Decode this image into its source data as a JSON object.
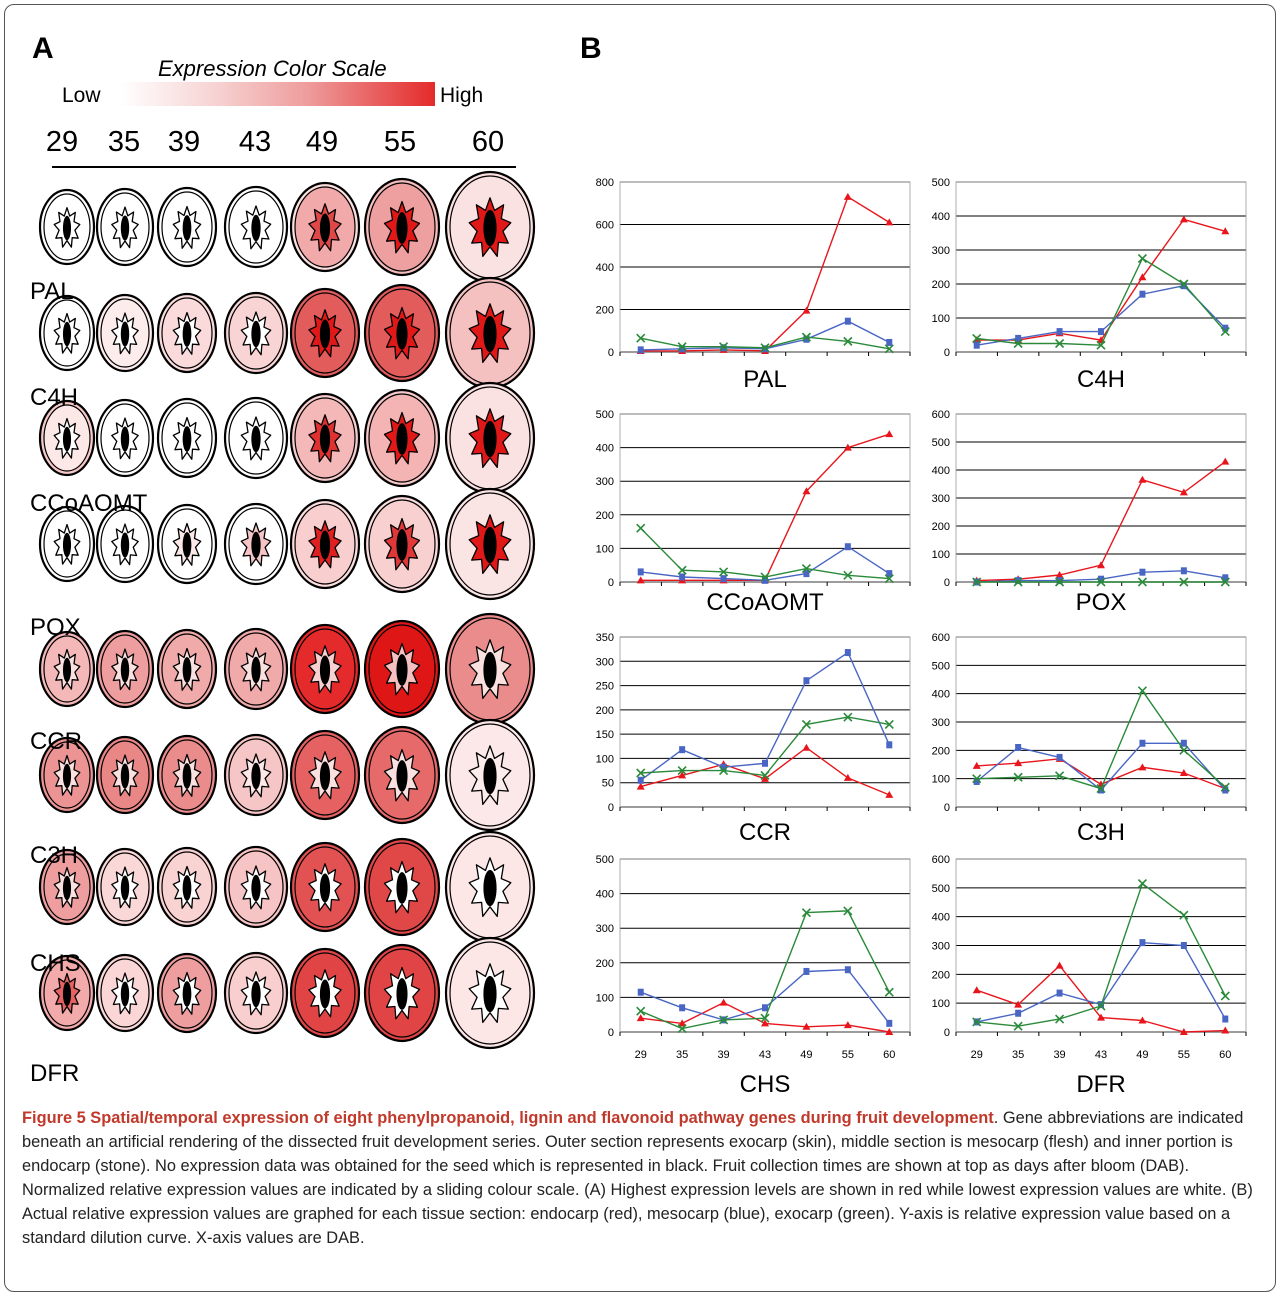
{
  "panel_a": {
    "letter": "A",
    "scale": {
      "title": "Expression Color Scale",
      "low": "Low",
      "high": "High"
    },
    "days": [
      "29",
      "35",
      "39",
      "43",
      "49",
      "55",
      "60"
    ],
    "genes": [
      {
        "name": "PAL",
        "skin": [
          "#ffffff",
          "#ffffff",
          "#ffffff",
          "#ffffff",
          "#fbdede",
          "#f5bcbc",
          "#fae0e0"
        ],
        "flesh": [
          "#ffffff",
          "#ffffff",
          "#ffffff",
          "#ffffff",
          "#f2a9a9",
          "#eea0a0",
          "#fbe2e2"
        ],
        "core": [
          "#ffffff",
          "#ffffff",
          "#ffffff",
          "#ffffff",
          "#e04848",
          "#e01818",
          "#e01818"
        ]
      },
      {
        "name": "C4H",
        "skin": [
          "#ffffff",
          "#fcecec",
          "#fadcdc",
          "#f9d6d6",
          "#e25c5c",
          "#e25c5c",
          "#f5c2c2"
        ],
        "flesh": [
          "#ffffff",
          "#fcecec",
          "#fadada",
          "#f9d4d4",
          "#e25c5c",
          "#e25c5c",
          "#f4c0c0"
        ],
        "core": [
          "#ffffff",
          "#ffffff",
          "#ffffff",
          "#ffffff",
          "#e01818",
          "#e01818",
          "#e01818"
        ]
      },
      {
        "name": "CCoAOMT",
        "skin": [
          "#f6c8c8",
          "#ffffff",
          "#ffffff",
          "#ffffff",
          "#f8cccc",
          "#f7c8c8",
          "#fbe2e2"
        ],
        "flesh": [
          "#fde8e8",
          "#ffffff",
          "#ffffff",
          "#ffffff",
          "#f4b8b8",
          "#f4b4b4",
          "#fbe2e2"
        ],
        "core": [
          "#ffffff",
          "#ffffff",
          "#ffffff",
          "#ffffff",
          "#e03030",
          "#e01818",
          "#e01818"
        ]
      },
      {
        "name": "POX",
        "skin": [
          "#ffffff",
          "#ffffff",
          "#ffffff",
          "#ffffff",
          "#fbdede",
          "#fbdcdc",
          "#fbe4e4"
        ],
        "flesh": [
          "#ffffff",
          "#ffffff",
          "#ffffff",
          "#ffffff",
          "#f8cece",
          "#f8d0d0",
          "#fbe4e4"
        ],
        "core": [
          "#ffffff",
          "#ffffff",
          "#fde8e8",
          "#f6c4c4",
          "#e02020",
          "#e03838",
          "#e01818"
        ]
      },
      {
        "name": "CCR",
        "skin": [
          "#f4b8b8",
          "#ee9e9e",
          "#f1aaaa",
          "#f1aaaa",
          "#e42a2a",
          "#de1616",
          "#eb8c8c"
        ],
        "flesh": [
          "#f4b8b8",
          "#ee9e9e",
          "#f1aaaa",
          "#f1aaaa",
          "#e42a2a",
          "#de1616",
          "#eb8c8c"
        ],
        "core": [
          "#fbe0e0",
          "#fbe0e0",
          "#fbe0e0",
          "#fbe0e0",
          "#f9d0d0",
          "#f7c0c0",
          "#fbe0e0"
        ]
      },
      {
        "name": "C3H",
        "skin": [
          "#ec9494",
          "#e98686",
          "#eb8c8c",
          "#f6c6c6",
          "#e66262",
          "#e66a6a",
          "#fce8e8"
        ],
        "flesh": [
          "#ec9494",
          "#e98686",
          "#eb8c8c",
          "#f6c6c6",
          "#e66262",
          "#e66a6a",
          "#fce8e8"
        ],
        "core": [
          "#fbe0e0",
          "#fbe0e0",
          "#fbe0e0",
          "#fde8e8",
          "#fbe0e0",
          "#fbe0e0",
          "#fdecec"
        ]
      },
      {
        "name": "CHS",
        "skin": [
          "#ee9e9e",
          "#fad8d8",
          "#f9d2d2",
          "#f6c4c4",
          "#e25252",
          "#e04848",
          "#fce6e6"
        ],
        "flesh": [
          "#ee9e9e",
          "#fad8d8",
          "#f9d2d2",
          "#f6c4c4",
          "#e25252",
          "#e04848",
          "#fce6e6"
        ],
        "core": [
          "#fbe0e0",
          "#ffffff",
          "#ffffff",
          "#ffffff",
          "#ffffff",
          "#ffffff",
          "#ffffff"
        ]
      },
      {
        "name": "DFR",
        "skin": [
          "#f2aaaa",
          "#fad6d6",
          "#ee9e9e",
          "#f8cece",
          "#e04444",
          "#e04444",
          "#fce6e6"
        ],
        "flesh": [
          "#f2aaaa",
          "#fad6d6",
          "#ee9e9e",
          "#f8cece",
          "#e04444",
          "#e04444",
          "#fce6e6"
        ],
        "core": [
          "#e66262",
          "#ffffff",
          "#ffffff",
          "#ffffff",
          "#ffffff",
          "#ffffff",
          "#ffffff"
        ]
      }
    ]
  },
  "panel_b": {
    "letter": "B"
  },
  "colors": {
    "endocarp": "#e8161c",
    "mesocarp": "#4a66c4",
    "exocarp": "#2a8a3a"
  },
  "chart_data": [
    {
      "type": "line",
      "title": "PAL",
      "categories": [
        "29",
        "35",
        "39",
        "43",
        "49",
        "55",
        "60"
      ],
      "yticks": [
        0,
        200,
        400,
        600,
        800
      ],
      "ylim": [
        0,
        800
      ],
      "series": [
        {
          "values": [
            5,
            5,
            10,
            5,
            195,
            730,
            610
          ]
        },
        {
          "values": [
            10,
            15,
            20,
            15,
            60,
            145,
            45
          ]
        },
        {
          "values": [
            65,
            25,
            25,
            20,
            70,
            50,
            15
          ]
        }
      ]
    },
    {
      "type": "line",
      "title": "C4H",
      "categories": [
        "29",
        "35",
        "39",
        "43",
        "49",
        "55",
        "60"
      ],
      "yticks": [
        0,
        100,
        200,
        300,
        400,
        500
      ],
      "ylim": [
        0,
        500
      ],
      "series": [
        {
          "values": [
            35,
            35,
            55,
            35,
            220,
            390,
            355
          ]
        },
        {
          "values": [
            20,
            40,
            60,
            60,
            170,
            195,
            70
          ]
        },
        {
          "values": [
            40,
            25,
            25,
            20,
            275,
            200,
            60
          ]
        }
      ]
    },
    {
      "type": "line",
      "title": "CCoAOMT",
      "categories": [
        "29",
        "35",
        "39",
        "43",
        "49",
        "55",
        "60"
      ],
      "yticks": [
        0,
        100,
        200,
        300,
        400,
        500
      ],
      "ylim": [
        0,
        500
      ],
      "series": [
        {
          "values": [
            5,
            5,
            5,
            5,
            270,
            400,
            440
          ]
        },
        {
          "values": [
            30,
            15,
            10,
            5,
            25,
            105,
            25
          ]
        },
        {
          "values": [
            160,
            35,
            30,
            15,
            40,
            20,
            10
          ]
        }
      ]
    },
    {
      "type": "line",
      "title": "POX",
      "categories": [
        "29",
        "35",
        "39",
        "43",
        "49",
        "55",
        "60"
      ],
      "yticks": [
        0,
        100,
        200,
        300,
        400,
        500,
        600
      ],
      "ylim": [
        0,
        600
      ],
      "series": [
        {
          "values": [
            5,
            10,
            25,
            60,
            365,
            320,
            430
          ]
        },
        {
          "values": [
            0,
            5,
            5,
            10,
            35,
            40,
            15
          ]
        },
        {
          "values": [
            0,
            0,
            0,
            0,
            0,
            0,
            0
          ]
        }
      ]
    },
    {
      "type": "line",
      "title": "CCR",
      "categories": [
        "29",
        "35",
        "39",
        "43",
        "49",
        "55",
        "60"
      ],
      "yticks": [
        0,
        50,
        100,
        150,
        200,
        250,
        300,
        350
      ],
      "ylim": [
        0,
        350
      ],
      "series": [
        {
          "values": [
            42,
            65,
            88,
            58,
            122,
            60,
            25
          ]
        },
        {
          "values": [
            55,
            118,
            82,
            90,
            260,
            318,
            128
          ]
        },
        {
          "values": [
            70,
            75,
            75,
            65,
            170,
            185,
            170
          ]
        }
      ]
    },
    {
      "type": "line",
      "title": "C3H",
      "categories": [
        "29",
        "35",
        "39",
        "43",
        "49",
        "55",
        "60"
      ],
      "yticks": [
        0,
        100,
        200,
        300,
        400,
        500,
        600
      ],
      "ylim": [
        0,
        600
      ],
      "series": [
        {
          "values": [
            145,
            155,
            170,
            80,
            140,
            120,
            65
          ]
        },
        {
          "values": [
            90,
            210,
            175,
            60,
            225,
            225,
            60
          ]
        },
        {
          "values": [
            100,
            105,
            110,
            65,
            410,
            200,
            70
          ]
        }
      ]
    },
    {
      "type": "line",
      "title": "CHS",
      "categories": [
        "29",
        "35",
        "39",
        "43",
        "49",
        "55",
        "60"
      ],
      "yticks": [
        0,
        100,
        200,
        300,
        400,
        500
      ],
      "ylim": [
        0,
        500
      ],
      "series": [
        {
          "values": [
            40,
            25,
            85,
            25,
            15,
            20,
            0
          ]
        },
        {
          "values": [
            115,
            70,
            35,
            70,
            175,
            180,
            25
          ]
        },
        {
          "values": [
            60,
            10,
            35,
            40,
            345,
            350,
            115
          ]
        }
      ]
    },
    {
      "type": "line",
      "title": "DFR",
      "categories": [
        "29",
        "35",
        "39",
        "43",
        "49",
        "55",
        "60"
      ],
      "yticks": [
        0,
        100,
        200,
        300,
        400,
        500,
        600
      ],
      "ylim": [
        0,
        600
      ],
      "series": [
        {
          "values": [
            145,
            95,
            230,
            50,
            40,
            0,
            5
          ]
        },
        {
          "values": [
            35,
            65,
            135,
            95,
            310,
            300,
            45
          ]
        },
        {
          "values": [
            35,
            20,
            45,
            90,
            515,
            405,
            125
          ]
        }
      ]
    }
  ],
  "caption": {
    "title": "Figure 5 Spatial/temporal expression of eight phenylpropanoid, lignin and flavonoid pathway genes during fruit development",
    "body": ". Gene abbreviations are indicated beneath an artificial rendering of the dissected fruit development series. Outer section represents exocarp (skin), middle section is mesocarp (flesh) and inner portion is endocarp (stone). No expression data was obtained for the seed which is represented in black. Fruit collection times are shown at top as days after bloom (DAB). Normalized relative expression values are indicated by a sliding colour scale. (A) Highest expression levels are shown in red while lowest expression values are white. (B) Actual relative expression values are graphed for each tissue section: endocarp (red), mesocarp (blue), exocarp (green). Y-axis is relative expression value based on a standard dilution curve. X-axis values are DAB."
  }
}
